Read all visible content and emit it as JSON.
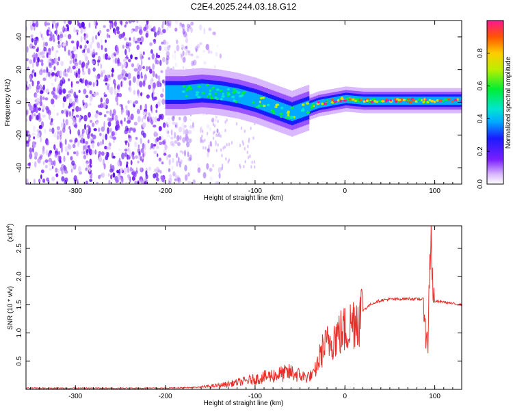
{
  "title": "C2E4.2025.244.03.18.G12",
  "chart_data": [
    {
      "type": "heatmap",
      "xlabel": "Height of straight line (km)",
      "ylabel": "Frequency (Hz)",
      "xlim": [
        -355,
        130
      ],
      "ylim": [
        -50,
        50
      ],
      "x_ticks": [
        -300,
        -200,
        -100,
        0,
        100
      ],
      "x_tick_labels": [
        "-300",
        "-200",
        "-100",
        "0",
        "100"
      ],
      "y_ticks": [
        -40,
        -20,
        0,
        20,
        40
      ],
      "y_tick_labels": [
        "-40",
        "-20",
        "0",
        "20",
        "40"
      ],
      "colorbar": {
        "label": "Normalized spectral amplitude",
        "range": [
          0,
          1
        ],
        "ticks": [
          0.0,
          0.2,
          0.4,
          0.6,
          0.8
        ],
        "tick_labels": [
          "0.0",
          "0.2",
          "0.4",
          "0.6",
          "0.8"
        ]
      },
      "ridge": {
        "x": [
          -200,
          -180,
          -160,
          -140,
          -120,
          -100,
          -80,
          -60,
          -50,
          -40,
          -30,
          -20,
          -10,
          0,
          20,
          40,
          60,
          80,
          90,
          100,
          130
        ],
        "freq": [
          6,
          6,
          7,
          6,
          4,
          1,
          -3,
          -7,
          -5,
          -3,
          -1,
          0,
          1,
          2,
          1,
          1,
          1,
          1,
          1,
          1,
          1
        ]
      },
      "noise_region": [
        -355,
        -160
      ]
    },
    {
      "type": "line",
      "xlabel": "Height of straight line (km)",
      "ylabel": "SNR (10 * v/v)",
      "y_multiplier": "(x10",
      "y_multiplier_exp": "4",
      "xlim": [
        -355,
        130
      ],
      "ylim": [
        0,
        2.9
      ],
      "x_ticks": [
        -300,
        -200,
        -100,
        0,
        100
      ],
      "x_tick_labels": [
        "-300",
        "-200",
        "-100",
        "0",
        "100"
      ],
      "y_ticks": [
        0.5,
        1.0,
        1.5,
        2.0,
        2.5
      ],
      "y_tick_labels": [
        "0.5",
        "1.0",
        "1.5",
        "2.0",
        "2.5"
      ],
      "series": [
        {
          "color": "#e8302a",
          "x": [
            -355,
            -300,
            -250,
            -200,
            -160,
            -140,
            -120,
            -100,
            -80,
            -60,
            -45,
            -35,
            -25,
            -15,
            -5,
            5,
            10,
            15,
            20,
            30,
            40,
            50,
            60,
            70,
            80,
            88,
            92,
            94,
            96,
            98,
            100,
            110,
            120,
            130
          ],
          "y": [
            0.02,
            0.02,
            0.02,
            0.02,
            0.04,
            0.07,
            0.12,
            0.18,
            0.25,
            0.3,
            0.22,
            0.25,
            0.7,
            0.9,
            1.0,
            1.1,
            1.25,
            1.3,
            1.4,
            1.52,
            1.58,
            1.6,
            1.6,
            1.61,
            1.6,
            1.6,
            0.6,
            2.0,
            2.85,
            1.55,
            1.56,
            1.55,
            1.52,
            1.5
          ]
        }
      ]
    }
  ]
}
